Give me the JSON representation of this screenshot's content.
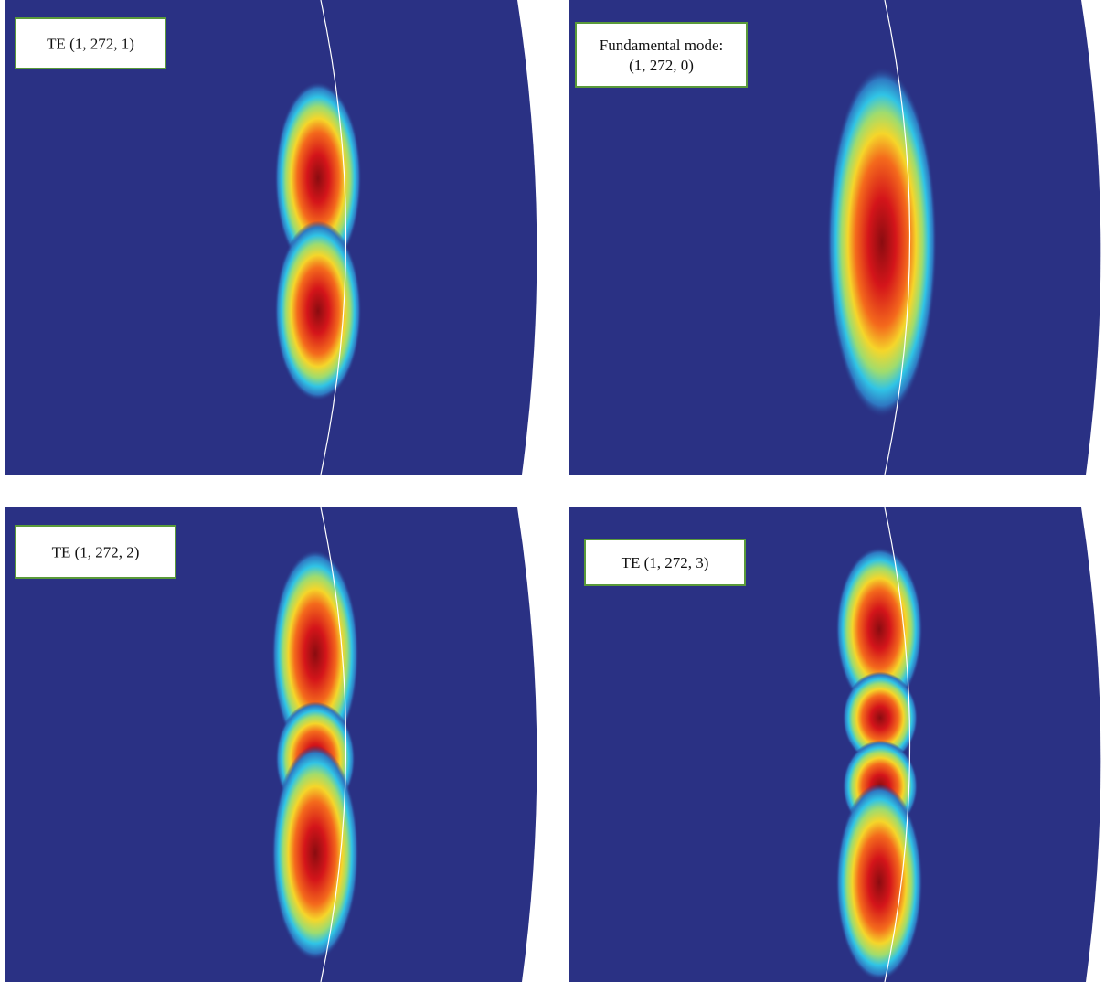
{
  "panels": [
    {
      "label": [
        "TE (1, 272, 1)"
      ]
    },
    {
      "label": [
        "Fundamental mode:",
        "(1, 272, 0)"
      ]
    },
    {
      "label": [
        "TE (1, 272, 2)"
      ]
    },
    {
      "label": [
        "TE (1, 272, 3)"
      ]
    }
  ]
}
